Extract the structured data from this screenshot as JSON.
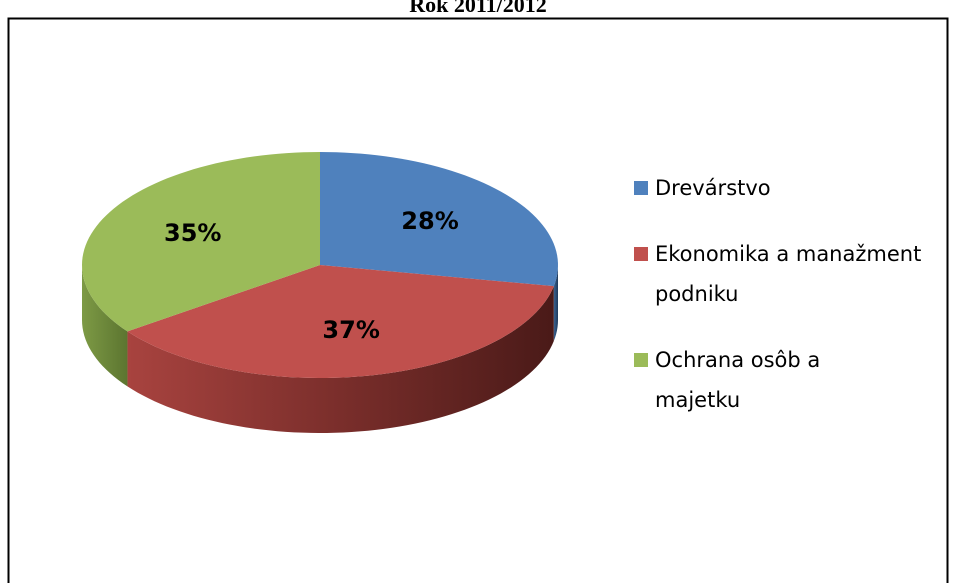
{
  "chart_data": {
    "type": "pie",
    "title": "Rok 2011/2012",
    "categories": [
      "Drevárstvo",
      "Ekonomika a manažment podniku",
      "Ochrana osôb a majetku"
    ],
    "values": [
      28,
      37,
      35
    ],
    "value_labels": [
      "28%",
      "37%",
      "35%"
    ],
    "colors": [
      "#4f81bd",
      "#c0504d",
      "#9bbb59"
    ]
  }
}
